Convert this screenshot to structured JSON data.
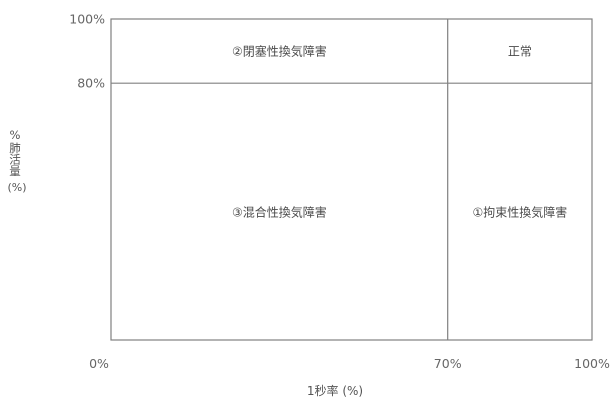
{
  "chart_data": {
    "type": "table",
    "title": "",
    "xlabel": "1秒率 (%)",
    "ylabel_main": "%肺活量",
    "ylabel_unit": "(%)",
    "xlim": [
      0,
      100
    ],
    "ylim": [
      0,
      100
    ],
    "x_ticks": [
      {
        "value": 0,
        "label": "0%"
      },
      {
        "value": 70,
        "label": "70%"
      },
      {
        "value": 100,
        "label": "100%"
      }
    ],
    "y_ticks": [
      {
        "value": 80,
        "label": "80%"
      },
      {
        "value": 100,
        "label": "100%"
      }
    ],
    "x_divider": 70,
    "y_divider": 80,
    "regions": [
      {
        "label": "②閉塞性換気障害",
        "x": [
          0,
          70
        ],
        "y": [
          80,
          100
        ]
      },
      {
        "label": "正常",
        "x": [
          70,
          100
        ],
        "y": [
          80,
          100
        ]
      },
      {
        "label": "③混合性換気障害",
        "x": [
          0,
          70
        ],
        "y": [
          0,
          80
        ]
      },
      {
        "label": "①拘束性換気障害",
        "x": [
          70,
          100
        ],
        "y": [
          0,
          80
        ]
      }
    ],
    "grid": false,
    "line_color": "#808080"
  }
}
